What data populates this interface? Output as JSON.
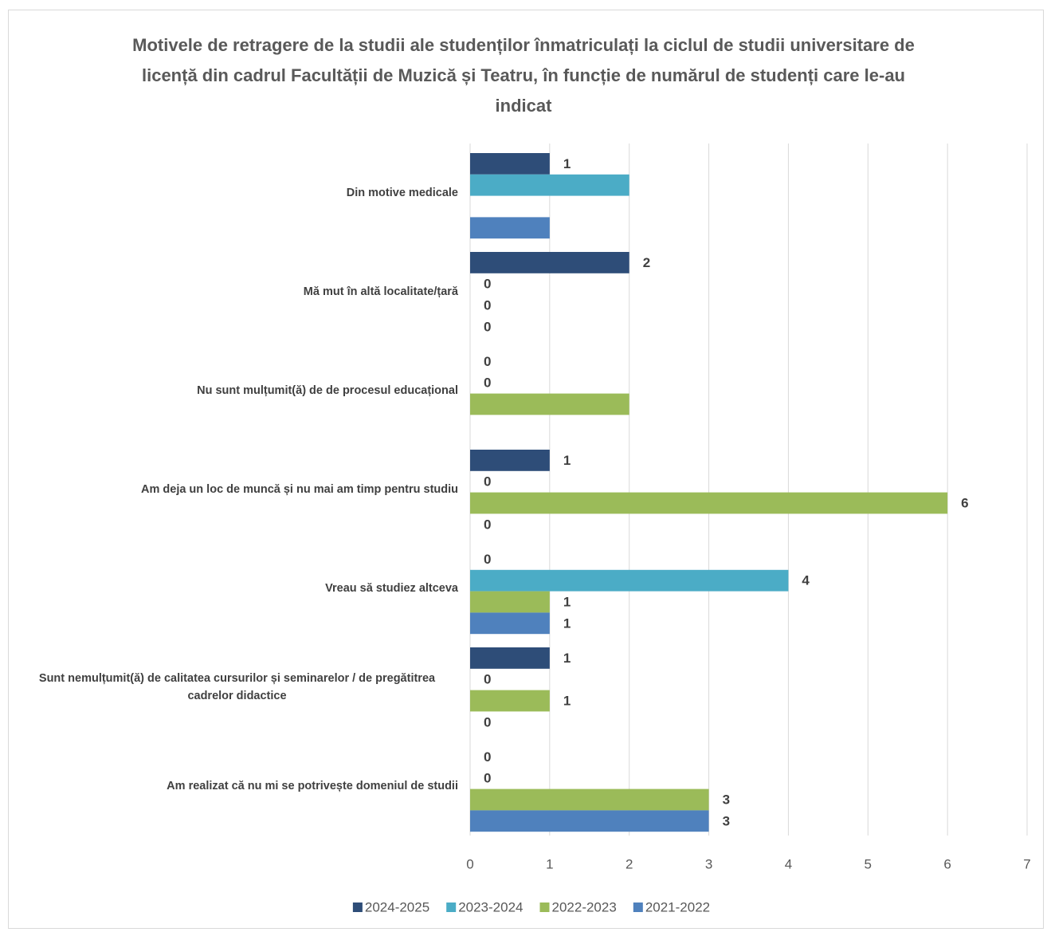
{
  "chart_data": {
    "type": "hbar",
    "title": "Motivele de retragere de la studii ale studenților înmatriculați la ciclul de studii universitare de licență din cadrul Facultății de Muzică și Teatru, în funcție de numărul de studenți care le-au indicat",
    "categories": [
      "Din motive medicale",
      "Mă mut în altă localitate/țară",
      "Nu sunt mulțumit(ă) de de procesul educațional",
      "Am deja un loc de muncă și nu mai am timp pentru studiu",
      "Vreau să studiez altceva",
      "Sunt nemulțumit(ă) de calitatea cursurilor și seminarelor / de pregătitrea cadrelor didactice",
      "Am realizat că nu mi se potrivește domeniul de studii"
    ],
    "series": [
      {
        "name": "2024-2025",
        "color": "#2e4d78",
        "values": [
          1,
          2,
          0,
          1,
          0,
          1,
          0
        ],
        "value_labels": [
          "1",
          "2",
          "0",
          "1",
          "0",
          "1",
          "0"
        ]
      },
      {
        "name": "2023-2024",
        "color": "#4bacc6",
        "values": [
          2,
          0,
          0,
          0,
          4,
          0,
          0
        ],
        "value_labels": [
          null,
          "0",
          "0",
          "0",
          "4",
          "0",
          "0"
        ]
      },
      {
        "name": "2022-2023",
        "color": "#9bbb59",
        "values": [
          null,
          0,
          2,
          6,
          1,
          1,
          3
        ],
        "value_labels": [
          null,
          "0",
          null,
          "6",
          "1",
          "1",
          "3"
        ]
      },
      {
        "name": "2021-2022",
        "color": "#4f81bd",
        "values": [
          1,
          0,
          null,
          0,
          1,
          0,
          3
        ],
        "value_labels": [
          null,
          "0",
          null,
          "0",
          "1",
          "0",
          "3"
        ]
      }
    ],
    "xlim": [
      0,
      7
    ],
    "xticks": [
      0,
      1,
      2,
      3,
      4,
      5,
      6,
      7
    ],
    "grid": true,
    "legend": "bottom"
  }
}
